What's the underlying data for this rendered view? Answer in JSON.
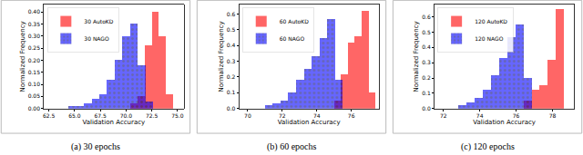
{
  "chart_data": [
    {
      "type": "histogram",
      "title": "(a) 30 epochs",
      "x_label": "Validation Accuracy",
      "y_label": "Normalized Frequency",
      "xlim": [
        62,
        75.6
      ],
      "ylim": [
        0,
        0.43
      ],
      "xticks": [
        62.5,
        {
          "value": 65,
          "label": "65.0"
        },
        67.5,
        {
          "value": 70,
          "label": "70.0"
        },
        72.5,
        {
          "value": 75,
          "label": "75.0"
        }
      ],
      "yticks": [
        {
          "value": 0,
          "label": "0.00"
        },
        0.05,
        {
          "value": 0.1,
          "label": "0.10"
        },
        0.15,
        {
          "value": 0.2,
          "label": "0.20"
        },
        0.25,
        {
          "value": 0.3,
          "label": "0.30"
        },
        0.35,
        {
          "value": 0.4,
          "label": "0.40"
        }
      ],
      "legend": "upper left",
      "series": [
        {
          "name": "30 AutoKD",
          "color": "#ff0000",
          "bins": [
            70.4,
            71.1,
            71.8,
            72.5,
            73.2,
            73.9,
            74.6
          ],
          "values": [
            0.02,
            0.05,
            0.26,
            0.4,
            0.3,
            0.06
          ]
        },
        {
          "name": "30 NAGO",
          "color": "#0000ff",
          "marker": "dots",
          "bins": [
            64.4,
            65.15,
            65.9,
            66.65,
            67.4,
            68.15,
            68.9,
            69.65,
            70.4,
            71.15,
            71.9,
            72.65
          ],
          "values": [
            0.01,
            0.01,
            0.02,
            0.04,
            0.06,
            0.12,
            0.2,
            0.3,
            0.35,
            0.18,
            0.03
          ]
        }
      ]
    },
    {
      "type": "histogram",
      "title": "(b) 60 epochs",
      "x_label": "Validation Accuracy",
      "y_label": "Normalized Frequency",
      "xlim": [
        69.5,
        77.6
      ],
      "ylim": [
        0,
        0.66
      ],
      "xticks": [
        70,
        72,
        74,
        76
      ],
      "yticks": [
        {
          "value": 0,
          "label": "0.0"
        },
        0.1,
        0.2,
        0.3,
        0.4,
        0.5,
        0.6
      ],
      "legend": "upper left",
      "series": [
        {
          "name": "60 AutoKD",
          "color": "#ff0000",
          "bins": [
            75.0,
            75.4,
            75.8,
            76.2,
            76.6,
            77.0,
            77.4
          ],
          "values": [
            0.05,
            0.22,
            0.42,
            0.46,
            0.62,
            0.1
          ]
        },
        {
          "name": "60 NAGO",
          "color": "#0000ff",
          "marker": "dots",
          "bins": [
            71.0,
            71.45,
            71.9,
            72.35,
            72.8,
            73.25,
            73.7,
            74.15,
            74.6,
            75.05,
            75.5
          ],
          "values": [
            0.02,
            0.03,
            0.05,
            0.1,
            0.18,
            0.25,
            0.33,
            0.45,
            0.57,
            0.18
          ]
        }
      ]
    },
    {
      "type": "histogram",
      "title": "(c) 120 epochs",
      "x_label": "Validation Accuracy",
      "y_label": "Normalized Frequency",
      "xlim": [
        71.5,
        79.2
      ],
      "ylim": [
        0,
        0.68
      ],
      "xticks": [
        72,
        74,
        76,
        78
      ],
      "yticks": [
        {
          "value": 0,
          "label": "0.0"
        },
        0.1,
        0.2,
        0.3,
        0.4,
        0.5,
        0.6
      ],
      "legend": "upper left",
      "series": [
        {
          "name": "120 AutoKD",
          "color": "#ff0000",
          "bins": [
            76.4,
            76.85,
            77.3,
            77.75,
            78.2,
            78.65
          ],
          "values": [
            0.05,
            0.12,
            0.15,
            0.32,
            0.65
          ]
        },
        {
          "name": "120 NAGO",
          "color": "#0000ff",
          "marker": "dots",
          "bins": [
            72.8,
            73.25,
            73.7,
            74.15,
            74.6,
            75.05,
            75.5,
            75.95,
            76.4,
            76.85
          ],
          "values": [
            0.02,
            0.04,
            0.07,
            0.12,
            0.22,
            0.33,
            0.47,
            0.55,
            0.2
          ]
        }
      ]
    }
  ]
}
